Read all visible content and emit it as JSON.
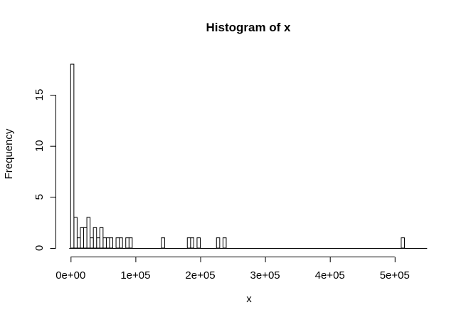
{
  "chart_data": {
    "type": "bar",
    "subtype": "histogram",
    "title": "Histogram of x",
    "xlabel": "x",
    "ylabel": "Frequency",
    "bin_width": 5000,
    "x_range": [
      0,
      550000
    ],
    "ylim": [
      0,
      18
    ],
    "grid": false,
    "bar_fill": "#ffffff",
    "bar_stroke": "#000000",
    "x_ticks": [
      {
        "value": 0,
        "label": "0e+00"
      },
      {
        "value": 100000,
        "label": "1e+05"
      },
      {
        "value": 200000,
        "label": "2e+05"
      },
      {
        "value": 300000,
        "label": "3e+05"
      },
      {
        "value": 400000,
        "label": "4e+05"
      },
      {
        "value": 500000,
        "label": "5e+05"
      }
    ],
    "y_ticks": [
      {
        "value": 0,
        "label": "0"
      },
      {
        "value": 5,
        "label": "5"
      },
      {
        "value": 10,
        "label": "10"
      },
      {
        "value": 15,
        "label": "15"
      }
    ],
    "bins": [
      {
        "left": 0,
        "count": 18
      },
      {
        "left": 5000,
        "count": 3
      },
      {
        "left": 10000,
        "count": 1
      },
      {
        "left": 15000,
        "count": 2
      },
      {
        "left": 20000,
        "count": 2
      },
      {
        "left": 25000,
        "count": 3
      },
      {
        "left": 30000,
        "count": 1
      },
      {
        "left": 35000,
        "count": 2
      },
      {
        "left": 40000,
        "count": 1
      },
      {
        "left": 45000,
        "count": 2
      },
      {
        "left": 50000,
        "count": 1
      },
      {
        "left": 55000,
        "count": 1
      },
      {
        "left": 60000,
        "count": 1
      },
      {
        "left": 70000,
        "count": 1
      },
      {
        "left": 75000,
        "count": 1
      },
      {
        "left": 85000,
        "count": 1
      },
      {
        "left": 90000,
        "count": 1
      },
      {
        "left": 140000,
        "count": 1
      },
      {
        "left": 180000,
        "count": 1
      },
      {
        "left": 185000,
        "count": 1
      },
      {
        "left": 195000,
        "count": 1
      },
      {
        "left": 225000,
        "count": 1
      },
      {
        "left": 235000,
        "count": 1
      },
      {
        "left": 510000,
        "count": 1
      }
    ]
  }
}
